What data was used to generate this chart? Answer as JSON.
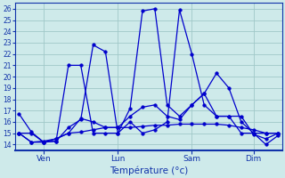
{
  "title": "",
  "xlabel": "Température (°c)",
  "ylabel": "",
  "background_color": "#ceeaea",
  "grid_color": "#a0c8c8",
  "line_color": "#0000cc",
  "xtick_labels": [
    "Ven",
    "Lun",
    "Sam",
    "Dim"
  ],
  "xtick_positions": [
    2,
    8,
    14,
    19
  ],
  "xlim": [
    -0.3,
    21.3
  ],
  "ylim": [
    13.5,
    26.5
  ],
  "yticks": [
    14,
    15,
    16,
    17,
    18,
    19,
    20,
    21,
    22,
    23,
    24,
    25,
    26
  ],
  "series": [
    {
      "x": [
        0,
        1,
        2,
        3,
        4,
        5,
        6,
        7,
        8,
        9,
        10,
        11,
        12,
        13,
        14,
        15,
        16,
        17,
        18,
        19,
        20,
        21
      ],
      "y": [
        16.7,
        15.1,
        14.2,
        14.3,
        15.5,
        16.2,
        22.8,
        22.2,
        15.0,
        16.0,
        15.0,
        15.3,
        16.0,
        25.9,
        22.0,
        17.5,
        16.5,
        16.5,
        16.5,
        14.9,
        14.5,
        15.0
      ]
    },
    {
      "x": [
        0,
        1,
        2,
        3,
        4,
        5,
        6,
        7,
        8,
        9,
        10,
        11,
        12,
        13,
        14,
        15,
        16,
        17,
        18,
        19,
        20,
        21
      ],
      "y": [
        15.0,
        15.0,
        14.2,
        14.3,
        21.0,
        21.0,
        15.0,
        15.0,
        15.0,
        17.2,
        25.8,
        26.0,
        17.5,
        16.5,
        17.5,
        18.5,
        20.3,
        19.0,
        16.0,
        15.0,
        14.0,
        14.8
      ]
    },
    {
      "x": [
        0,
        1,
        2,
        3,
        4,
        5,
        6,
        7,
        8,
        9,
        10,
        11,
        12,
        13,
        14,
        15,
        16,
        17,
        18,
        19,
        20,
        21
      ],
      "y": [
        15.0,
        14.2,
        14.2,
        14.5,
        15.0,
        16.3,
        16.0,
        15.5,
        15.5,
        16.5,
        17.3,
        17.5,
        16.5,
        16.2,
        17.5,
        18.5,
        16.5,
        16.5,
        15.0,
        15.0,
        15.0,
        15.0
      ]
    },
    {
      "x": [
        0,
        1,
        2,
        3,
        4,
        5,
        6,
        7,
        8,
        9,
        10,
        11,
        12,
        13,
        14,
        15,
        16,
        17,
        18,
        19,
        20,
        21
      ],
      "y": [
        15.0,
        14.2,
        14.3,
        14.5,
        15.0,
        15.1,
        15.3,
        15.5,
        15.5,
        15.5,
        15.6,
        15.7,
        15.7,
        15.8,
        15.8,
        15.8,
        15.8,
        15.7,
        15.5,
        15.3,
        15.0,
        15.0
      ]
    }
  ]
}
